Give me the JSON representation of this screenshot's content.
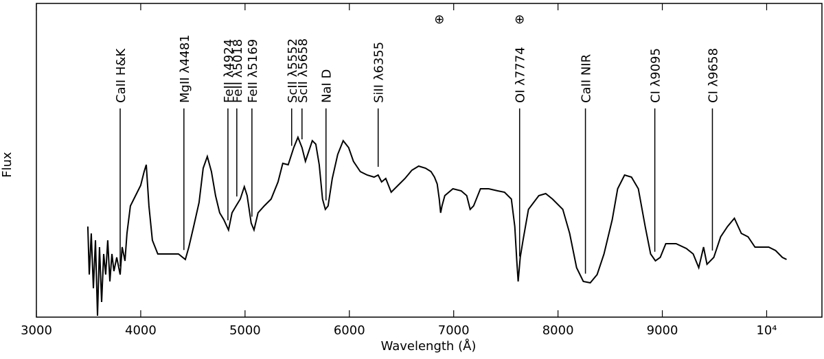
{
  "chart_data": {
    "type": "line",
    "xlabel": "Wavelength (Å)",
    "ylabel": "Flux",
    "xlim": [
      3000,
      10530
    ],
    "ylim": [
      0,
      457
    ],
    "xticks": [
      3000,
      4000,
      5000,
      6000,
      7000,
      8000,
      9000,
      {
        "value": 10000,
        "label": "10⁴"
      }
    ],
    "color": "#000000",
    "x": [
      3493,
      3507,
      3526,
      3546,
      3566,
      3586,
      3605,
      3625,
      3645,
      3664,
      3684,
      3704,
      3724,
      3743,
      3770,
      3803,
      3822,
      3849,
      3868,
      3901,
      3934,
      3967,
      4000,
      4033,
      4053,
      4079,
      4112,
      4164,
      4230,
      4362,
      4428,
      4461,
      4507,
      4559,
      4599,
      4638,
      4678,
      4717,
      4757,
      4796,
      4842,
      4875,
      4914,
      4954,
      4993,
      5020,
      5059,
      5086,
      5125,
      5184,
      5250,
      5316,
      5362,
      5414,
      5467,
      5507,
      5546,
      5579,
      5612,
      5645,
      5678,
      5711,
      5743,
      5770,
      5796,
      5836,
      5888,
      5941,
      5993,
      6039,
      6105,
      6171,
      6237,
      6276,
      6309,
      6349,
      6401,
      6467,
      6533,
      6599,
      6664,
      6730,
      6783,
      6816,
      6842,
      6862,
      6875,
      6888,
      6915,
      6993,
      7072,
      7125,
      7158,
      7191,
      7257,
      7336,
      7421,
      7487,
      7553,
      7586,
      7605,
      7618,
      7638,
      7665,
      7717,
      7816,
      7882,
      7947,
      8046,
      8112,
      8178,
      8243,
      8309,
      8375,
      8441,
      8520,
      8572,
      8638,
      8704,
      8770,
      8836,
      8888,
      8934,
      8980,
      9033,
      9132,
      9230,
      9296,
      9349,
      9395,
      9428,
      9493,
      9559,
      9625,
      9691,
      9757,
      9822,
      9888,
      9954,
      10020,
      10086,
      10151,
      10191
    ],
    "values": [
      132,
      62,
      122,
      42,
      112,
      2,
      102,
      22,
      92,
      62,
      112,
      52,
      92,
      67,
      87,
      62,
      102,
      82,
      122,
      162,
      172,
      182,
      192,
      212,
      222,
      162,
      112,
      92,
      92,
      92,
      84,
      102,
      132,
      167,
      217,
      234,
      212,
      177,
      152,
      142,
      127,
      152,
      162,
      172,
      190,
      177,
      137,
      127,
      152,
      162,
      172,
      197,
      224,
      222,
      247,
      262,
      247,
      227,
      242,
      257,
      252,
      222,
      172,
      157,
      162,
      202,
      237,
      257,
      247,
      227,
      212,
      207,
      204,
      207,
      197,
      202,
      182,
      192,
      202,
      214,
      220,
      217,
      212,
      204,
      194,
      172,
      152,
      162,
      177,
      187,
      184,
      177,
      157,
      162,
      187,
      187,
      184,
      182,
      172,
      132,
      82,
      52,
      87,
      112,
      157,
      177,
      180,
      172,
      157,
      122,
      72,
      52,
      50,
      62,
      92,
      142,
      187,
      207,
      204,
      187,
      132,
      92,
      82,
      87,
      107,
      107,
      100,
      92,
      72,
      102,
      77,
      87,
      117,
      132,
      144,
      122,
      117,
      102,
      102,
      102,
      97,
      87,
      84
    ],
    "annotations": [
      {
        "label": "CaII H&K",
        "x": 3803
      },
      {
        "label": "MgII λ4481",
        "x": 4414
      },
      {
        "label": "FeII λ4924",
        "x": 4836
      },
      {
        "label": "FeII λ5018",
        "x": 4921
      },
      {
        "label": "FeII λ5169",
        "x": 5066
      },
      {
        "label": "ScII λ5552",
        "x": 5447
      },
      {
        "label": "ScII λ5658",
        "x": 5546
      },
      {
        "label": "NaI D",
        "x": 5776
      },
      {
        "label": "SiII λ6355",
        "x": 6276
      },
      {
        "label": "OI λ7774",
        "x": 7632
      },
      {
        "label": "CaII NIR",
        "x": 8263
      },
      {
        "label": "CI λ9095",
        "x": 8928
      },
      {
        "label": "CI λ9658",
        "x": 9480
      }
    ],
    "telluric": [
      {
        "label": "⊕",
        "x": 6862
      },
      {
        "label": "⊕",
        "x": 7632
      }
    ]
  }
}
